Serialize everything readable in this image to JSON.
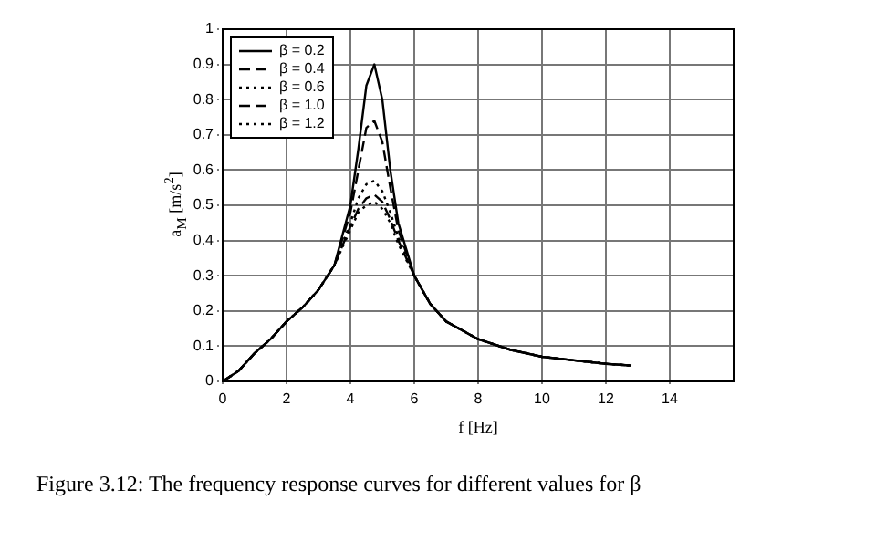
{
  "chart_data": {
    "type": "line",
    "xlabel": "f [Hz]",
    "ylabel": "a$_{M}$ [m/s$^{2}$]",
    "x": [
      0,
      0.5,
      1,
      1.5,
      2,
      2.5,
      3,
      3.5,
      4,
      4.25,
      4.5,
      4.75,
      5,
      5.25,
      5.5,
      6,
      6.5,
      7,
      8,
      9,
      10,
      11,
      12,
      12.8
    ],
    "series": [
      {
        "name": "β = 0.2",
        "color": "#000000",
        "line_style": "solid",
        "values": [
          0,
          0.03,
          0.08,
          0.12,
          0.17,
          0.21,
          0.26,
          0.33,
          0.5,
          0.66,
          0.84,
          0.9,
          0.8,
          0.6,
          0.45,
          0.3,
          0.22,
          0.17,
          0.12,
          0.09,
          0.07,
          0.06,
          0.05,
          0.045
        ]
      },
      {
        "name": "β = 0.4",
        "color": "#000000",
        "line_style": "dashed",
        "values": [
          0,
          0.03,
          0.08,
          0.12,
          0.17,
          0.21,
          0.26,
          0.33,
          0.48,
          0.6,
          0.72,
          0.74,
          0.68,
          0.55,
          0.43,
          0.3,
          0.22,
          0.17,
          0.12,
          0.09,
          0.07,
          0.06,
          0.05,
          0.045
        ]
      },
      {
        "name": "β = 0.6",
        "color": "#000000",
        "line_style": "dotted",
        "values": [
          0,
          0.03,
          0.08,
          0.12,
          0.17,
          0.21,
          0.26,
          0.33,
          0.45,
          0.52,
          0.56,
          0.57,
          0.54,
          0.48,
          0.41,
          0.3,
          0.22,
          0.17,
          0.12,
          0.09,
          0.07,
          0.06,
          0.05,
          0.045
        ]
      },
      {
        "name": "β = 1.0",
        "color": "#000000",
        "line_style": "dashed",
        "values": [
          0,
          0.03,
          0.08,
          0.12,
          0.17,
          0.21,
          0.26,
          0.33,
          0.44,
          0.49,
          0.52,
          0.53,
          0.51,
          0.46,
          0.4,
          0.3,
          0.22,
          0.17,
          0.12,
          0.09,
          0.07,
          0.06,
          0.05,
          0.045
        ]
      },
      {
        "name": "β = 1.2",
        "color": "#000000",
        "line_style": "dotted",
        "values": [
          0,
          0.03,
          0.08,
          0.12,
          0.17,
          0.21,
          0.26,
          0.33,
          0.43,
          0.48,
          0.5,
          0.51,
          0.49,
          0.45,
          0.39,
          0.3,
          0.22,
          0.17,
          0.12,
          0.09,
          0.07,
          0.06,
          0.05,
          0.045
        ]
      }
    ],
    "xlim": [
      0,
      16
    ],
    "xticks": [
      0,
      2,
      4,
      6,
      8,
      10,
      12,
      14
    ],
    "ylim": [
      0,
      1
    ],
    "yticks": [
      0,
      0.1,
      0.2,
      0.3,
      0.4,
      0.5,
      0.6,
      0.7,
      0.8,
      0.9,
      1
    ],
    "grid": true,
    "legend": "top left",
    "marker": "none",
    "annotations": [
      "Figure 3.12: The frequency response curves for different values for β"
    ]
  }
}
